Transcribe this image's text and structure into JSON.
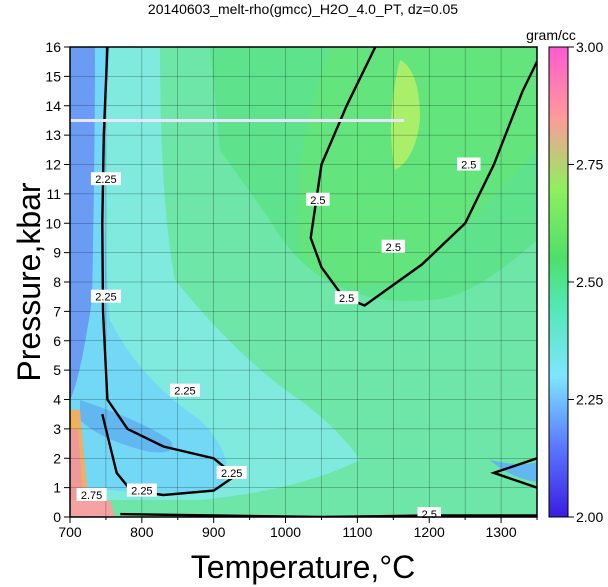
{
  "chart_data": {
    "type": "heatmap",
    "title": "20140603_melt-rho(gmcc)_H2O_4.0_PT, dz=0.05",
    "xlabel": "Temperature,°C",
    "ylabel": "Pressure,kbar",
    "xlim": [
      700,
      1350
    ],
    "ylim": [
      0,
      16
    ],
    "x_ticks": [
      700,
      800,
      900,
      1000,
      1100,
      1200,
      1300
    ],
    "y_ticks": [
      0,
      1,
      2,
      3,
      4,
      5,
      6,
      7,
      8,
      9,
      10,
      11,
      12,
      13,
      14,
      15,
      16
    ],
    "grid": true,
    "colorbar": {
      "label": "gram/cc",
      "min": 2.0,
      "max": 3.0,
      "ticks": [
        "2.00",
        "2.25",
        "2.50",
        "2.75",
        "3.00"
      ],
      "tick_values": [
        2.0,
        2.25,
        2.5,
        2.75,
        3.0
      ],
      "colors": [
        "#3a1de0",
        "#5a78ff",
        "#7ee6ff",
        "#52e8b2",
        "#4de06a",
        "#8ff05e",
        "#ff9a9a",
        "#ff5ad0"
      ]
    },
    "contour_labels": [
      {
        "text": "2.25",
        "x": 750,
        "y": 11.5
      },
      {
        "text": "2.25",
        "x": 750,
        "y": 7.5
      },
      {
        "text": "2.25",
        "x": 860,
        "y": 4.3
      },
      {
        "text": "2.25",
        "x": 925,
        "y": 1.5
      },
      {
        "text": "2.25",
        "x": 800,
        "y": 0.9
      },
      {
        "text": "2.5",
        "x": 1045,
        "y": 10.8
      },
      {
        "text": "2.5",
        "x": 1255,
        "y": 12.0
      },
      {
        "text": "2.5",
        "x": 1150,
        "y": 9.2
      },
      {
        "text": "2.5",
        "x": 1085,
        "y": 7.45
      },
      {
        "text": "2.5",
        "x": 1200,
        "y": 0.1
      },
      {
        "text": "2.75",
        "x": 730,
        "y": 0.75
      }
    ],
    "contour_lines_bold": [
      {
        "value": 2.25,
        "points": [
          [
            752,
            16
          ],
          [
            747,
            13
          ],
          [
            745,
            10
          ],
          [
            746,
            7
          ],
          [
            752,
            4
          ],
          [
            780,
            3
          ],
          [
            830,
            2.4
          ],
          [
            900,
            2.0
          ],
          [
            930,
            1.4
          ],
          [
            900,
            0.9
          ],
          [
            830,
            0.75
          ],
          [
            785,
            0.9
          ],
          [
            765,
            1.5
          ],
          [
            755,
            2.5
          ],
          [
            745,
            3.5
          ]
        ]
      },
      {
        "value": 2.5,
        "points": [
          [
            1125,
            16
          ],
          [
            1085,
            14
          ],
          [
            1050,
            12
          ],
          [
            1035,
            9.5
          ],
          [
            1050,
            8.5
          ],
          [
            1080,
            7.5
          ],
          [
            1110,
            7.2
          ],
          [
            1190,
            8.6
          ],
          [
            1250,
            10
          ],
          [
            1290,
            12
          ],
          [
            1330,
            14.5
          ],
          [
            1350,
            15.5
          ]
        ]
      },
      {
        "value": 2.5,
        "points": [
          [
            770,
            0.1
          ],
          [
            900,
            0.05
          ],
          [
            1050,
            0.0
          ],
          [
            1200,
            0.05
          ],
          [
            1350,
            0.05
          ]
        ]
      },
      {
        "value": 2.5,
        "points": [
          [
            1350,
            2.0
          ],
          [
            1290,
            1.5
          ],
          [
            1350,
            1.0
          ]
        ]
      }
    ],
    "reference_line": {
      "x": [
        700,
        1165
      ],
      "y": 13.5
    }
  }
}
